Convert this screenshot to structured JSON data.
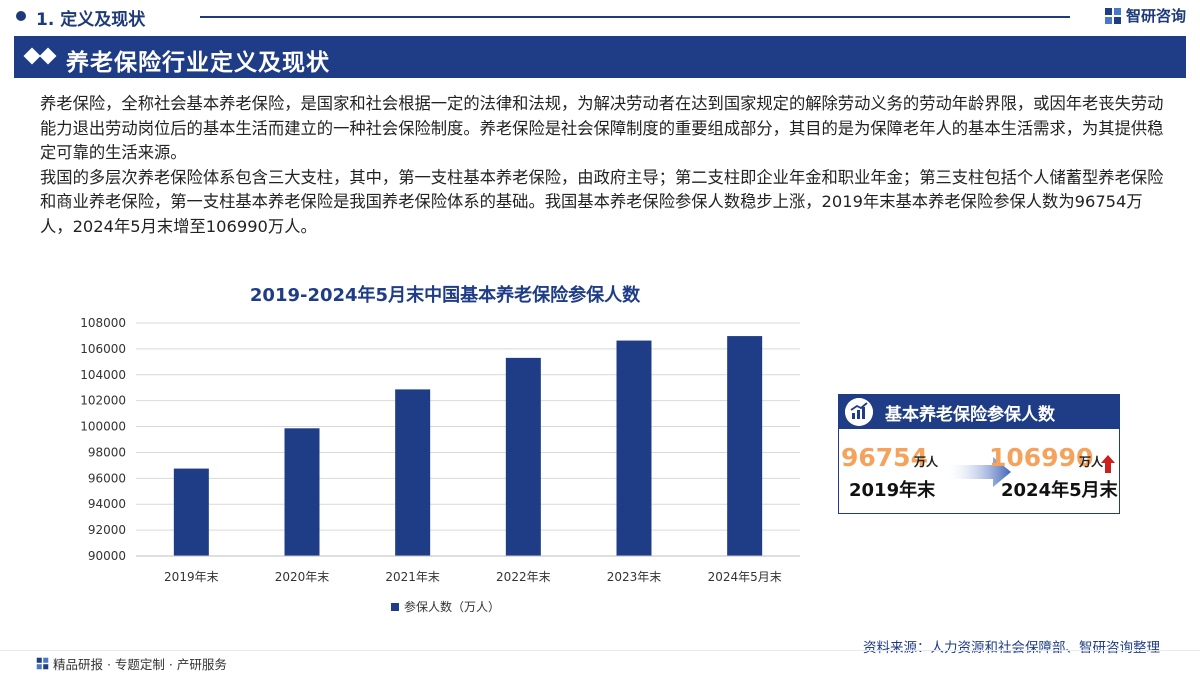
{
  "section": {
    "title": "1. 定义及现状"
  },
  "brand": {
    "name": "智研咨询",
    "icon": "company-logo-icon"
  },
  "banner": {
    "title": "养老保险行业定义及现状"
  },
  "body": {
    "paragraph1": "养老保险，全称社会基本养老保险，是国家和社会根据一定的法律和法规，为解决劳动者在达到国家规定的解除劳动义务的劳动年龄界限，或因年老丧失劳动能力退出劳动岗位后的基本生活而建立的一种社会保险制度。养老保险是社会保障制度的重要组成部分，其目的是为保障老年人的基本生活需求，为其提供稳定可靠的生活来源。",
    "paragraph2": "我国的多层次养老保险体系包含三大支柱，其中，第一支柱基本养老保险，由政府主导；第二支柱即企业年金和职业年金；第三支柱包括个人储蓄型养老保险和商业养老保险，第一支柱基本养老保险是我国养老保险体系的基础。我国基本养老保险参保人数稳步上涨，2019年末基本养老保险参保人数为96754万人，2024年5月末增至106990万人。"
  },
  "chart_data": {
    "type": "bar",
    "title": "2019-2024年5月末中国基本养老保险参保人数",
    "categories": [
      "2019年末",
      "2020年末",
      "2021年末",
      "2022年末",
      "2023年末",
      "2024年5月末"
    ],
    "series": [
      {
        "name": "参保人数（万人）",
        "values": [
          96754,
          99865,
          102871,
          105307,
          106643,
          106990
        ]
      }
    ],
    "ylim": [
      90000,
      108000
    ],
    "yticks": [
      90000,
      92000,
      94000,
      96000,
      98000,
      100000,
      102000,
      104000,
      106000,
      108000
    ],
    "grid": true,
    "legend": "bottom",
    "bar_color": "#1f3d86"
  },
  "card": {
    "title": "基本养老保险参保人数",
    "icon": "chart-growth-icon",
    "start_value": "96754",
    "start_unit": "万人",
    "start_label": "2019年末",
    "end_value": "106990",
    "end_unit": "万人",
    "end_label": "2024年5月末",
    "arrow_icon": "arrow-right-icon",
    "up_icon": "arrow-up-icon"
  },
  "source": "资料来源：人力资源和社会保障部、智研咨询整理",
  "footer": {
    "text": "精品研报 · 专题定制 · 产研服务"
  },
  "colors": {
    "primary": "#1f3d86",
    "accent": "#f5a25d",
    "up": "#cc1f1f"
  }
}
